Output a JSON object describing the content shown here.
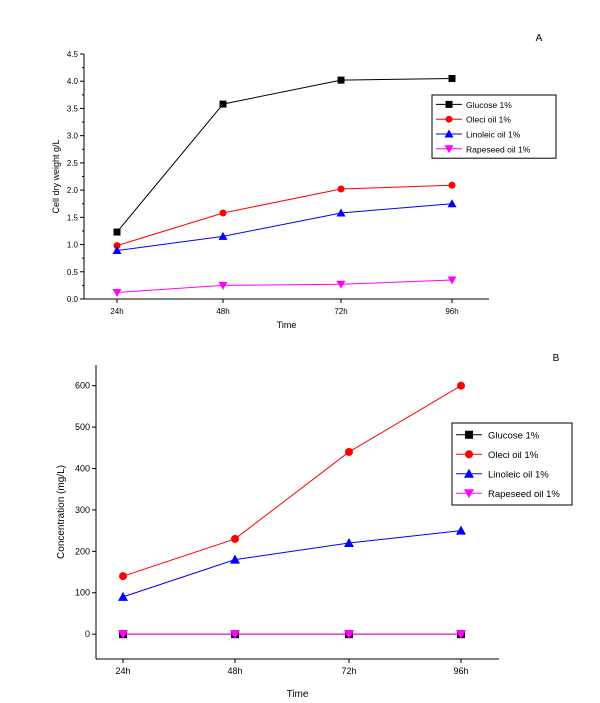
{
  "chart_data": [
    {
      "panel_label": "A",
      "type": "line",
      "xlabel": "Time",
      "ylabel": "Cell dry weight g/L",
      "categories": [
        "24h",
        "48h",
        "72h",
        "96h"
      ],
      "ylim": [
        0,
        4.5
      ],
      "yticks": [
        "0.0",
        "0.5",
        "1.0",
        "1.5",
        "2.0",
        "2.5",
        "3.0",
        "3.5",
        "4.0",
        "4.5"
      ],
      "grid": false,
      "legend_position": "top-right",
      "series": [
        {
          "name": "Glucose 1%",
          "color": "#000000",
          "marker": "square",
          "values": [
            1.23,
            3.58,
            4.02,
            4.05
          ]
        },
        {
          "name": "Oleci oil 1%",
          "color": "#ff0000",
          "marker": "circle",
          "values": [
            0.98,
            1.58,
            2.02,
            2.09
          ]
        },
        {
          "name": "Linoleic oil 1%",
          "color": "#0000ff",
          "marker": "triangle-up",
          "values": [
            0.89,
            1.15,
            1.58,
            1.75
          ]
        },
        {
          "name": "Rapeseed oil 1%",
          "color": "#ff00ff",
          "marker": "triangle-down",
          "values": [
            0.12,
            0.25,
            0.27,
            0.35
          ]
        }
      ]
    },
    {
      "panel_label": "B",
      "type": "line",
      "xlabel": "Time",
      "ylabel": "Concentration (mg/L)",
      "categories": [
        "24h",
        "48h",
        "72h",
        "96h"
      ],
      "ylim": [
        -60,
        650
      ],
      "yticks": [
        "0",
        "100",
        "200",
        "300",
        "400",
        "500",
        "600"
      ],
      "grid": false,
      "legend_position": "right",
      "series": [
        {
          "name": "Glucose 1%",
          "color": "#000000",
          "marker": "square",
          "values": [
            0,
            0,
            0,
            0
          ]
        },
        {
          "name": "Oleci oil 1%",
          "color": "#ff0000",
          "marker": "circle",
          "values": [
            140,
            230,
            440,
            600
          ]
        },
        {
          "name": "Linoleic oil 1%",
          "color": "#0000ff",
          "marker": "triangle-up",
          "values": [
            90,
            180,
            220,
            250
          ]
        },
        {
          "name": "Rapeseed oil 1%",
          "color": "#ff00ff",
          "marker": "triangle-down",
          "values": [
            0,
            0,
            0,
            0
          ]
        }
      ]
    }
  ]
}
